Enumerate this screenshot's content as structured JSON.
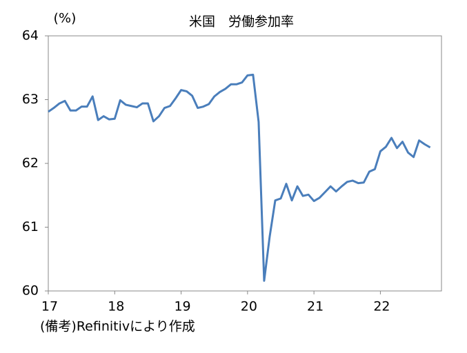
{
  "chart_data": {
    "type": "line",
    "title": "米国　労働参加率",
    "y_unit": "(%)",
    "note": "(備考)Refinitivにより作成",
    "x": [
      17,
      17.083,
      17.167,
      17.25,
      17.333,
      17.417,
      17.5,
      17.583,
      17.667,
      17.75,
      17.833,
      17.917,
      18,
      18.083,
      18.167,
      18.25,
      18.333,
      18.417,
      18.5,
      18.583,
      18.667,
      18.75,
      18.833,
      18.917,
      19,
      19.083,
      19.167,
      19.25,
      19.333,
      19.417,
      19.5,
      19.583,
      19.667,
      19.75,
      19.833,
      19.917,
      20,
      20.083,
      20.167,
      20.25,
      20.333,
      20.417,
      20.5,
      20.583,
      20.667,
      20.75,
      20.833,
      20.917,
      21,
      21.083,
      21.167,
      21.25,
      21.333,
      21.417,
      21.5,
      21.583,
      21.667,
      21.75,
      21.833,
      21.917,
      22,
      22.083,
      22.167,
      22.25,
      22.333,
      22.417,
      22.5,
      22.583,
      22.667,
      22.75
    ],
    "series": [
      {
        "color": "#4a7ebb",
        "values": [
          62.81,
          62.87,
          62.94,
          62.98,
          62.83,
          62.83,
          62.89,
          62.89,
          63.05,
          62.68,
          62.74,
          62.69,
          62.7,
          62.99,
          62.92,
          62.9,
          62.88,
          62.94,
          62.94,
          62.66,
          62.74,
          62.87,
          62.9,
          63.02,
          63.15,
          63.13,
          63.06,
          62.87,
          62.89,
          62.93,
          63.05,
          63.12,
          63.17,
          63.24,
          63.24,
          63.27,
          63.38,
          63.39,
          62.65,
          60.16,
          60.85,
          61.42,
          61.45,
          61.68,
          61.42,
          61.64,
          61.49,
          61.51,
          61.41,
          61.46,
          61.55,
          61.64,
          61.56,
          61.64,
          61.71,
          61.73,
          61.69,
          61.7,
          61.87,
          61.91,
          62.19,
          62.26,
          62.4,
          62.24,
          62.34,
          62.17,
          62.1,
          62.36,
          62.3,
          62.25
        ]
      }
    ],
    "xlim": [
      17,
      22.92
    ],
    "xticks": [
      17,
      18,
      19,
      20,
      21,
      22
    ],
    "ylim": [
      60,
      64
    ],
    "yticks": [
      60,
      61,
      62,
      63,
      64
    ],
    "grid": false
  }
}
